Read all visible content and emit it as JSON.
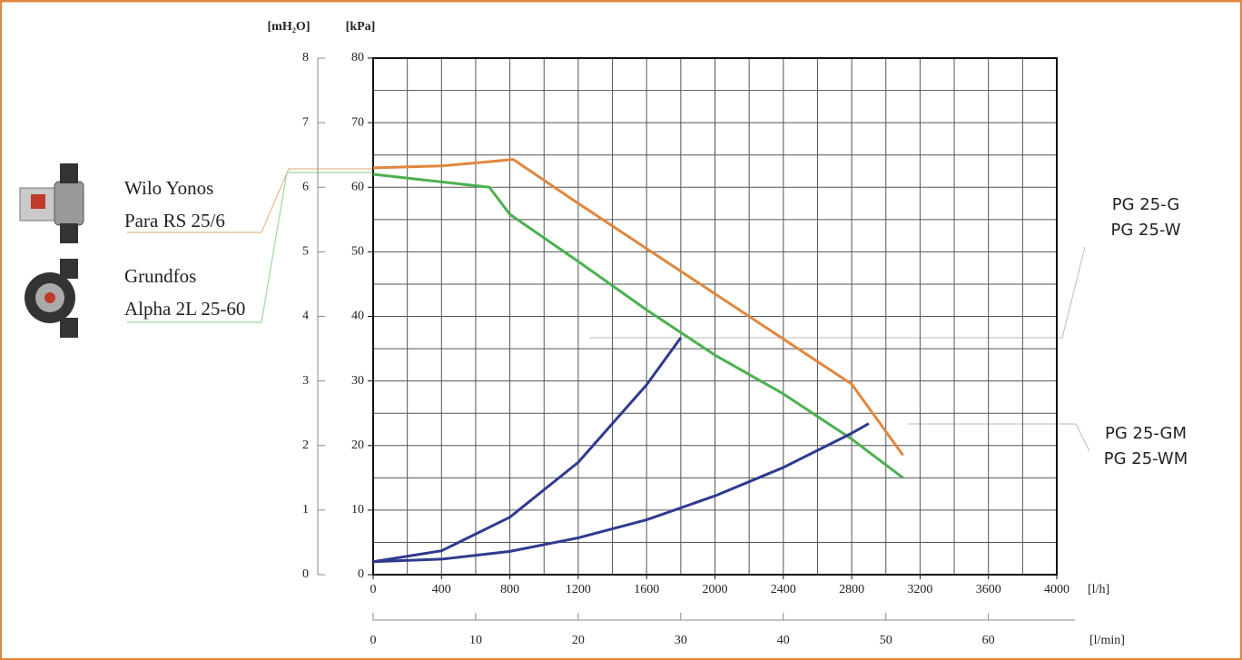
{
  "chart_data": {
    "type": "line",
    "y_label": "[kPa]",
    "y2_label": "[mH₂O]",
    "x_label": "[l/h]",
    "x2_label": "[l/min]",
    "xlim": [
      0,
      4000
    ],
    "xticks": [
      0,
      400,
      800,
      1200,
      1600,
      2000,
      2400,
      2800,
      3200,
      3600,
      4000
    ],
    "xgrid": [
      0,
      200,
      400,
      600,
      800,
      1000,
      1200,
      1400,
      1600,
      1800,
      2000,
      2200,
      2400,
      2600,
      2800,
      3000,
      3200,
      3400,
      3600,
      3800,
      4000
    ],
    "ylim": [
      0,
      80
    ],
    "yticks": [
      0,
      10,
      20,
      30,
      40,
      50,
      60,
      70,
      80
    ],
    "ygrid": [
      0,
      5,
      10,
      15,
      20,
      25,
      30,
      35,
      40,
      45,
      50,
      55,
      60,
      65,
      70,
      75,
      80
    ],
    "y2lim": [
      0,
      8
    ],
    "y2ticks": [
      0,
      1,
      2,
      3,
      4,
      5,
      6,
      7,
      8
    ],
    "x2lim": [
      0,
      66.67
    ],
    "x2ticks": [
      0,
      10,
      20,
      30,
      40,
      50,
      60
    ],
    "series": [
      {
        "name_lines": [
          "Wilo Yonos",
          "Para RS 25/6"
        ],
        "color": "#e0873f",
        "x": [
          0,
          400,
          820,
          1200,
          1600,
          2000,
          2400,
          2800,
          3100
        ],
        "values": [
          63,
          63.3,
          64.3,
          57.5,
          50.5,
          43.5,
          36.5,
          29.5,
          18.5
        ]
      },
      {
        "name_lines": [
          "Grundfos",
          "Alpha 2L 25-60"
        ],
        "color": "#4cb050",
        "x": [
          0,
          680,
          800,
          1200,
          1600,
          2000,
          2400,
          2800,
          3100
        ],
        "values": [
          62,
          60,
          55.8,
          48.5,
          41,
          34,
          28,
          21,
          15
        ]
      },
      {
        "name_lines": [
          "PG 25-G",
          "PG 25-W"
        ],
        "color": "#2f3a8f",
        "x": [
          0,
          400,
          800,
          1200,
          1600,
          1800
        ],
        "values": [
          2,
          3.7,
          8.9,
          17.4,
          29.4,
          36.7
        ]
      },
      {
        "name_lines": [
          "PG 25-GM",
          "PG 25-WM"
        ],
        "color": "#2f3a8f",
        "x": [
          0,
          400,
          800,
          1200,
          1600,
          2000,
          2400,
          2800,
          2900
        ],
        "values": [
          2,
          2.4,
          3.6,
          5.7,
          8.5,
          12.2,
          16.6,
          21.9,
          23.4
        ]
      }
    ]
  }
}
